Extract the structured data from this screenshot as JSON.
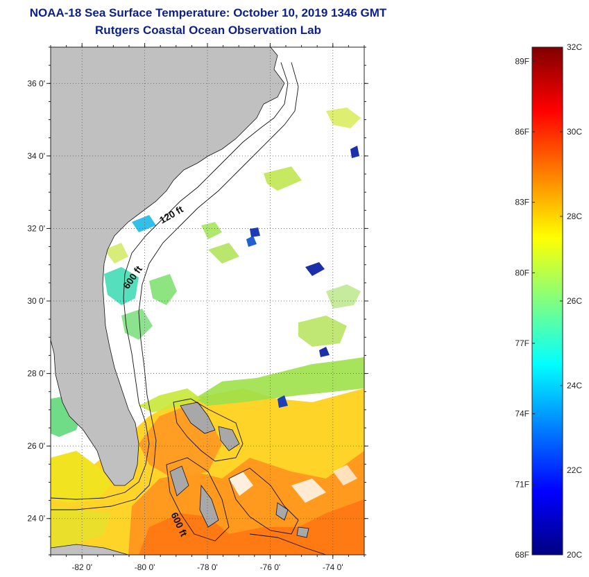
{
  "title": "NOAA-18 Sea Surface Temperature:  October 10, 2019 1346 GMT",
  "subtitle": "Rutgers Coastal Ocean Observation Lab",
  "map": {
    "lon_range": [
      -83,
      -73
    ],
    "lat_range": [
      23,
      37
    ],
    "lat_ticks": [
      {
        "value": 36,
        "label": "36 0'"
      },
      {
        "value": 34,
        "label": "34 0'"
      },
      {
        "value": 32,
        "label": "32 0'"
      },
      {
        "value": 30,
        "label": "30 0'"
      },
      {
        "value": 28,
        "label": "28 0'"
      },
      {
        "value": 26,
        "label": "26 0'"
      },
      {
        "value": 24,
        "label": "24 0'"
      }
    ],
    "lon_ticks": [
      {
        "value": -82,
        "label": "-82 0'"
      },
      {
        "value": -80,
        "label": "-80 0'"
      },
      {
        "value": -78,
        "label": "-78 0'"
      },
      {
        "value": -76,
        "label": "-76 0'"
      },
      {
        "value": -74,
        "label": "-74 0'"
      }
    ],
    "grid": true,
    "land_color": "#c0c0c0",
    "contour_labels": [
      {
        "text": "120 ft",
        "lon": -79.1,
        "lat": 32.3
      },
      {
        "text": "600 ft",
        "lon": -80.3,
        "lat": 30.6
      },
      {
        "text": "600 ft",
        "lon": -79.0,
        "lat": 23.8
      }
    ]
  },
  "colorbar": {
    "celsius_labels": [
      "32C",
      "30C",
      "28C",
      "26C",
      "24C",
      "22C",
      "20C"
    ],
    "celsius_values": [
      32,
      30,
      28,
      26,
      24,
      22,
      20
    ],
    "fahrenheit_labels": [
      "89F",
      "86F",
      "83F",
      "80F",
      "77F",
      "74F",
      "71F",
      "68F"
    ],
    "fahrenheit_values": [
      89,
      86,
      83,
      80,
      77,
      74,
      71,
      68
    ],
    "range_c": [
      20,
      32
    ],
    "colors": [
      "#000080",
      "#0000ff",
      "#0080ff",
      "#00ffff",
      "#80ff80",
      "#ffff00",
      "#ff8000",
      "#ff0000",
      "#800000"
    ]
  }
}
